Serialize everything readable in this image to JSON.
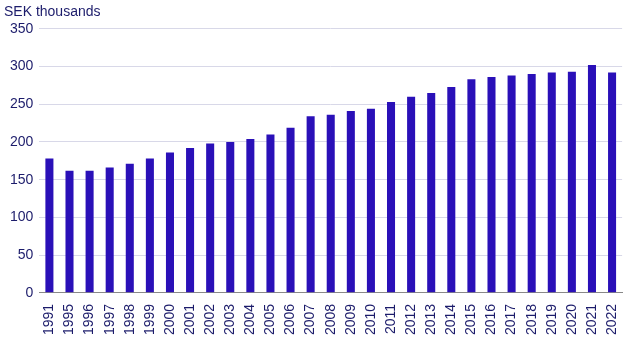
{
  "chart_data": {
    "type": "bar",
    "ylabel": "SEK thousands",
    "categories": [
      "1991",
      "1995",
      "1996",
      "1997",
      "1998",
      "1999",
      "2000",
      "2001",
      "2002",
      "2003",
      "2004",
      "2005",
      "2006",
      "2007",
      "2008",
      "2009",
      "2010",
      "2011",
      "2012",
      "2013",
      "2014",
      "2015",
      "2016",
      "2017",
      "2018",
      "2019",
      "2020",
      "2021",
      "2022"
    ],
    "values": [
      178,
      162,
      162,
      166,
      171,
      178,
      186,
      192,
      198,
      200,
      204,
      210,
      219,
      234,
      236,
      241,
      244,
      253,
      260,
      265,
      273,
      283,
      286,
      288,
      290,
      292,
      293,
      302,
      292
    ],
    "color": "#2a10b8",
    "ylim": [
      0,
      350
    ],
    "yticks": [
      0,
      50,
      100,
      150,
      200,
      250,
      300,
      350
    ],
    "grid": true
  }
}
